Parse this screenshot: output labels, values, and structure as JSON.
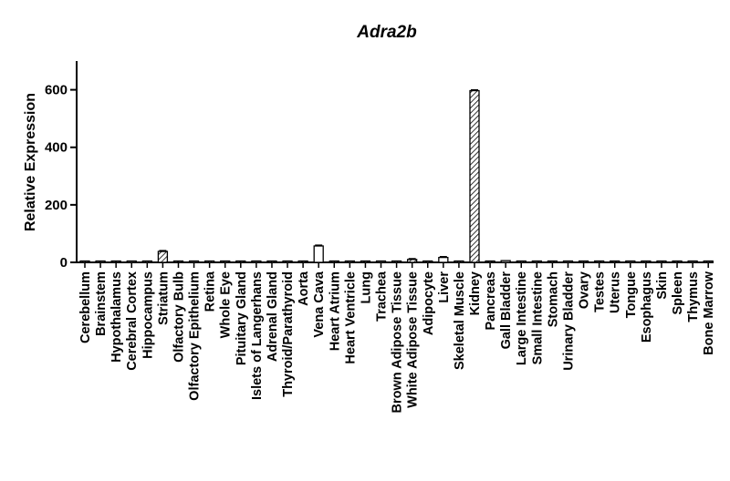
{
  "chart_data": {
    "type": "bar",
    "title": "Adra2b",
    "xlabel": "",
    "ylabel": "Relative Expression",
    "ylim": [
      0,
      700
    ],
    "yticks": [
      0,
      200,
      400,
      600
    ],
    "grid": false,
    "legend": "none",
    "bar_color": "#000000",
    "categories": [
      "Cerebellum",
      "Brainstem",
      "Hypothalamus",
      "Cerebral Cortex",
      "Hippocampus",
      "Striatum",
      "Olfactory Bulb",
      "Olfactory Epithelium",
      "Retina",
      "Whole Eye",
      "Pituitary Gland",
      "Islets of Langerhans",
      "Adrenal Gland",
      "Thyroid/Parathyroid",
      "Aorta",
      "Vena Cava",
      "Heart Atrium",
      "Heart Ventricle",
      "Lung",
      "Trachea",
      "Brown Adipose Tissue",
      "White Adipose Tissue",
      "Adipocyte",
      "Liver",
      "Skeletal Muscle",
      "Kidney",
      "Pancreas",
      "Gall Bladder",
      "Large Intestine",
      "Small Intestine",
      "Stomach",
      "Urinary Bladder",
      "Ovary",
      "Testes",
      "Uterus",
      "Tongue",
      "Esophagus",
      "Skin",
      "Spleen",
      "Thymus",
      "Bone Marrow"
    ],
    "values": [
      2,
      1,
      2,
      2,
      3,
      38,
      0.5,
      0.5,
      2,
      0.5,
      0.5,
      1,
      4,
      0.5,
      1,
      57,
      2,
      4,
      1,
      0.5,
      1,
      10,
      1,
      17,
      3,
      597,
      0.5,
      6,
      0.5,
      0.5,
      0.5,
      0.5,
      0.5,
      0.5,
      0.5,
      2,
      0.5,
      0.5,
      0.5,
      0.5,
      0.5
    ],
    "errors": [
      0,
      0,
      0,
      0,
      0,
      3,
      0,
      0,
      0,
      0,
      0,
      0,
      0,
      0,
      0,
      3,
      0,
      0,
      0,
      0,
      0,
      3,
      0,
      3,
      0,
      3,
      0,
      0,
      0,
      0,
      0,
      0,
      0,
      0,
      0,
      0,
      0,
      0,
      0,
      0,
      0
    ]
  }
}
